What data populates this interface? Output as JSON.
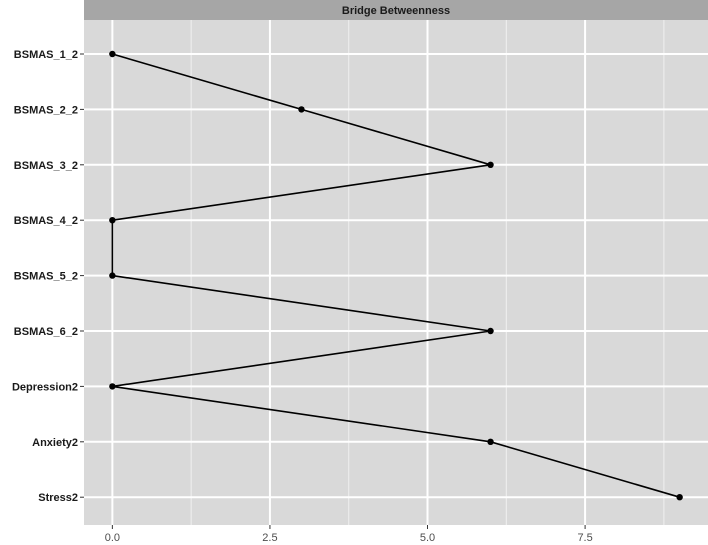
{
  "chart_data": {
    "type": "line",
    "facet_title": "Bridge Betweenness",
    "title": "",
    "xlabel": "",
    "ylabel": "",
    "categories": [
      "BSMAS_1_2",
      "BSMAS_2_2",
      "BSMAS_3_2",
      "BSMAS_4_2",
      "BSMAS_5_2",
      "BSMAS_6_2",
      "Depression2",
      "Anxiety2",
      "Stress2"
    ],
    "values": [
      0,
      3,
      6,
      0,
      0,
      6,
      0,
      6,
      9
    ],
    "xlim": [
      -0.45,
      9.45
    ],
    "xticks": [
      0,
      2.5,
      5,
      7.5
    ],
    "xtick_labels": [
      "0.0",
      "2.5",
      "5.0",
      "7.5"
    ],
    "grid": true,
    "colors": {
      "panel_background": "#d9d9d9",
      "strip_background": "#a6a6a6",
      "grid": "#ffffff",
      "line": "#000000",
      "point": "#000000"
    }
  }
}
